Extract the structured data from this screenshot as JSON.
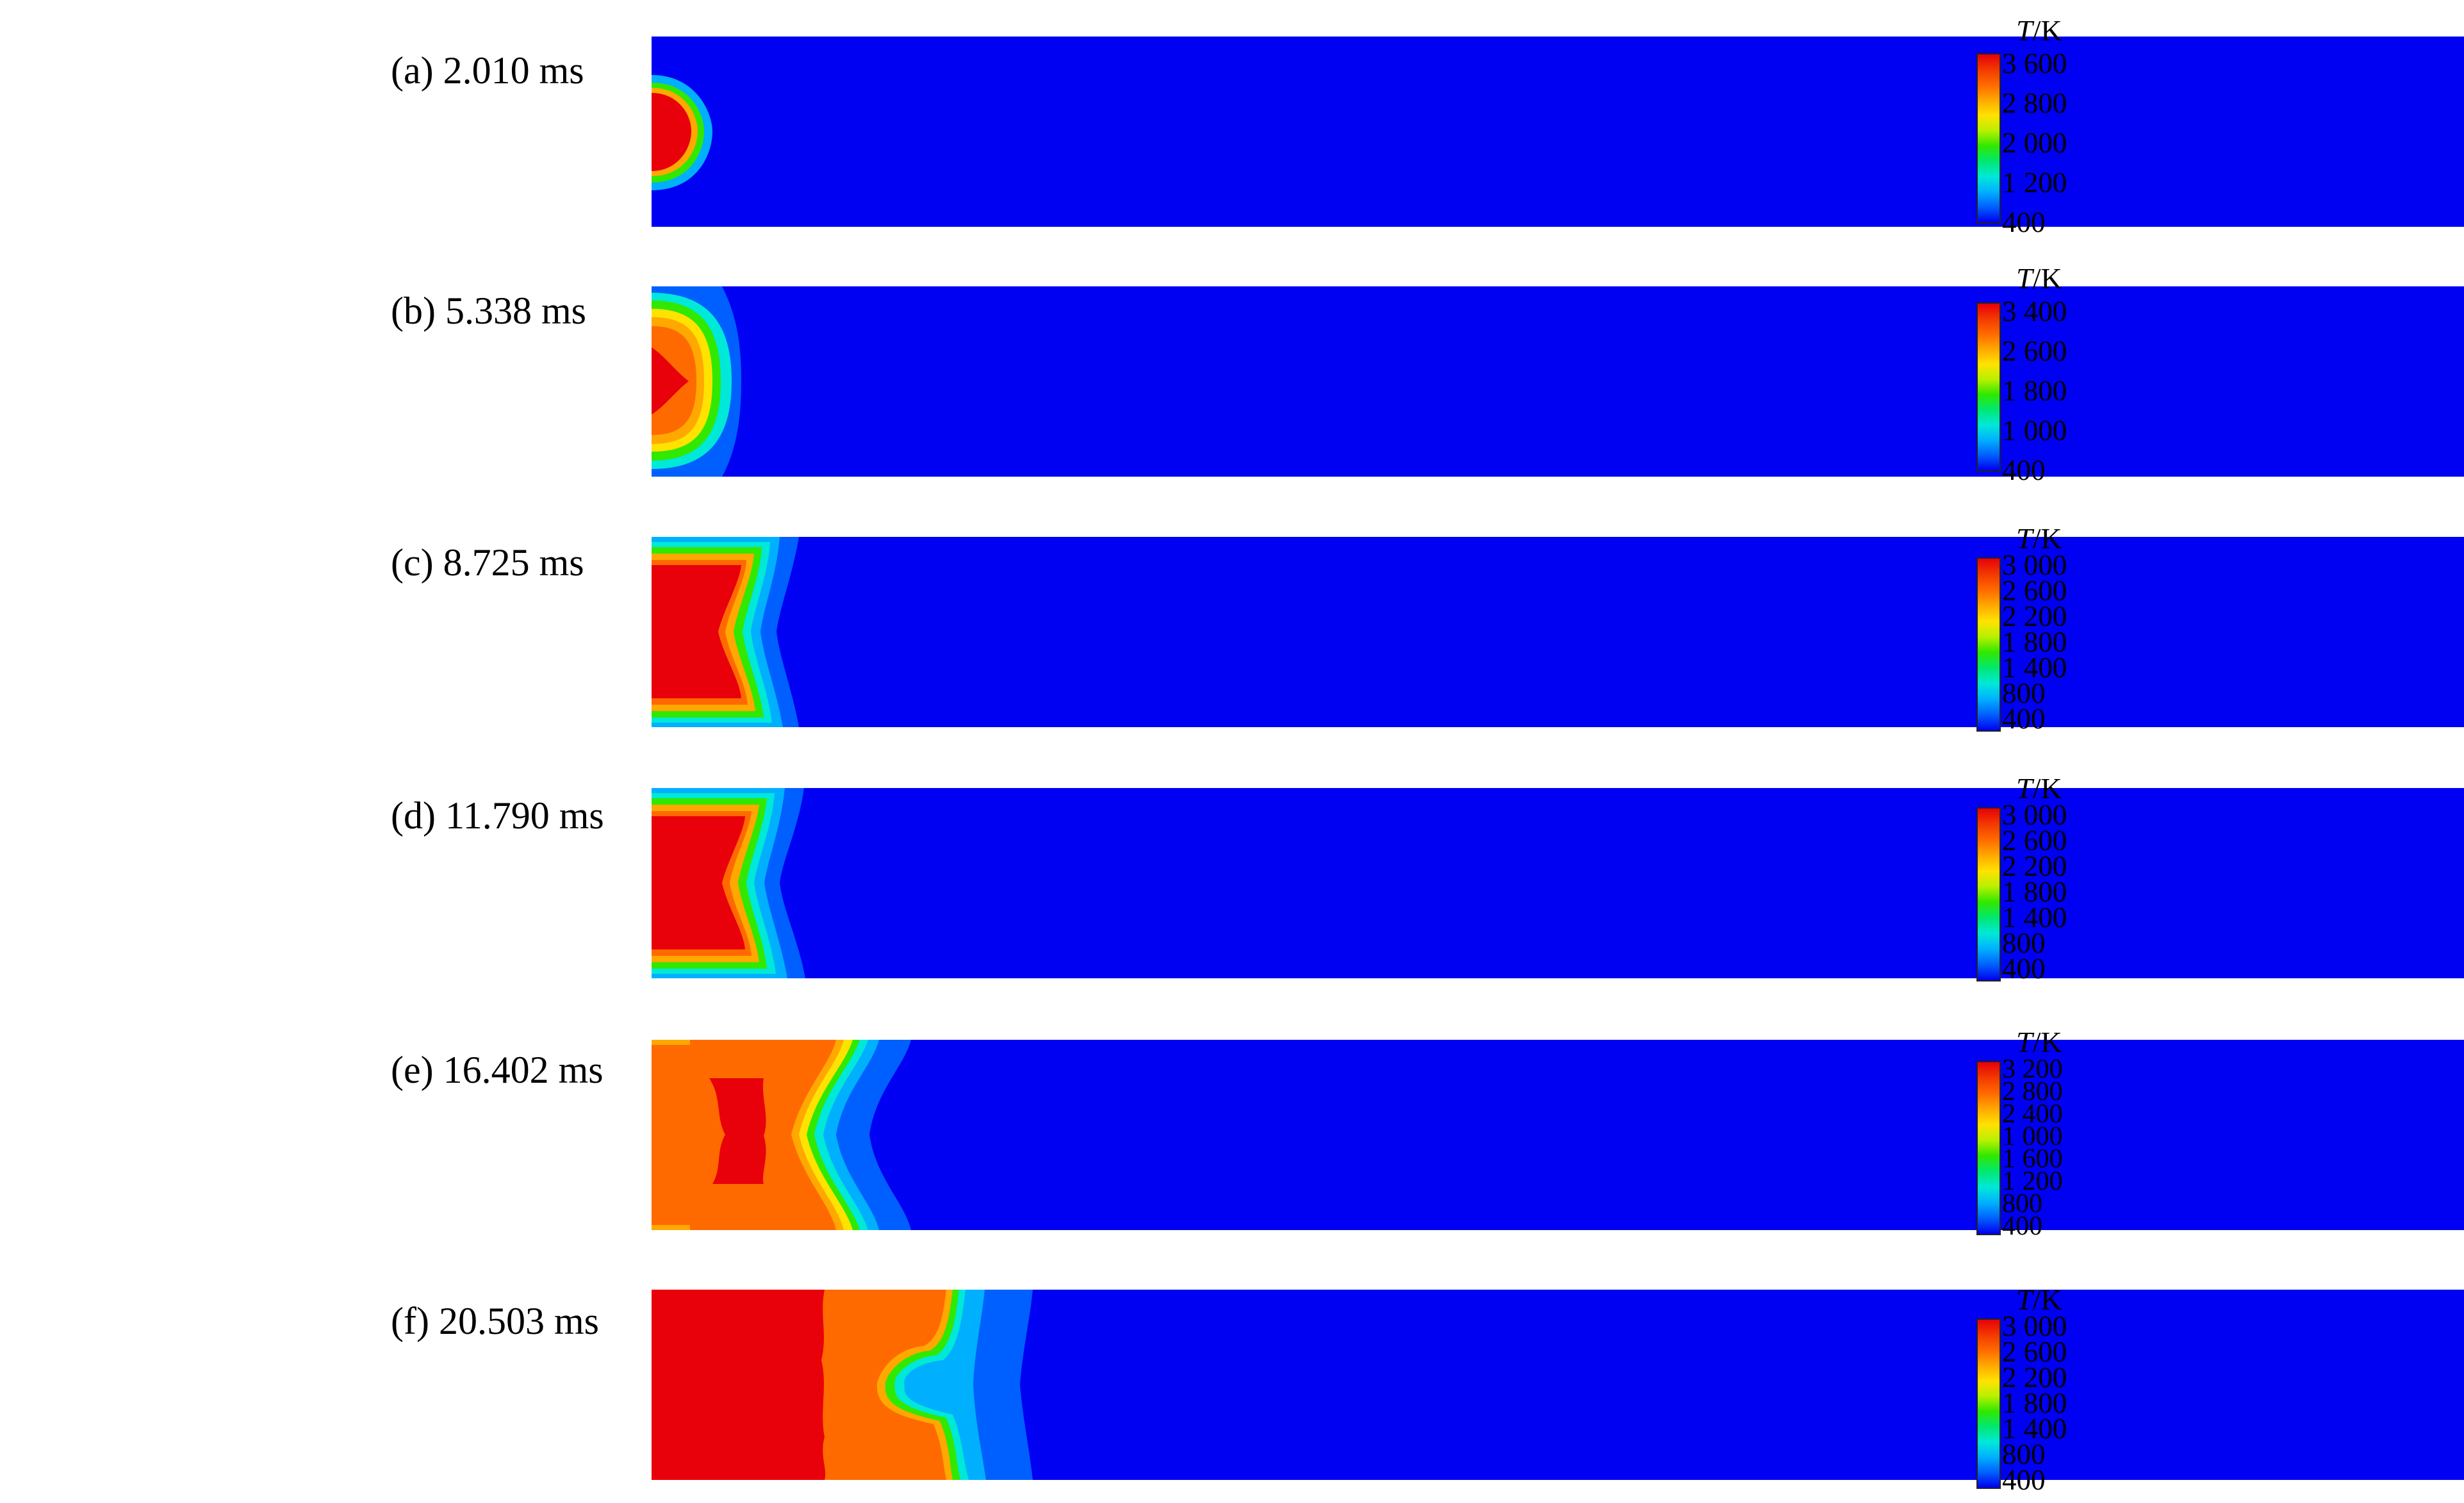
{
  "panels": [
    {
      "id": "a",
      "label": "(a) 2.010 ms",
      "ticks": [
        "3 600",
        "2 800",
        "2 000",
        "1 200",
        "400"
      ]
    },
    {
      "id": "b",
      "label": "(b) 5.338 ms",
      "ticks": [
        "3 400",
        "2 600",
        "1 800",
        "1 000",
        "400"
      ]
    },
    {
      "id": "c",
      "label": "(c) 8.725 ms",
      "ticks": [
        "3 000",
        "2 600",
        "2 200",
        "1 800",
        "1 400",
        "800",
        "400"
      ]
    },
    {
      "id": "d",
      "label": "(d) 11.790 ms",
      "ticks": [
        "3 000",
        "2 600",
        "2 200",
        "1 800",
        "1 400",
        "800",
        "400"
      ]
    },
    {
      "id": "e",
      "label": "(e) 16.402 ms",
      "ticks": [
        "3 200",
        "2 800",
        "2 400",
        "1 000",
        "1 600",
        "1 200",
        "800",
        "400"
      ]
    },
    {
      "id": "f",
      "label": "(f) 20.503 ms",
      "ticks": [
        "3 000",
        "2 600",
        "2 200",
        "1 800",
        "1 400",
        "800",
        "400"
      ]
    }
  ],
  "legend": {
    "symbol": "T",
    "unit": "/K"
  },
  "colors": {
    "background": "#0000f2",
    "scale": [
      "#e8000a",
      "#f23a00",
      "#ff6a00",
      "#ffa800",
      "#ffe200",
      "#b8f000",
      "#30e800",
      "#00e870",
      "#00e8d8",
      "#00b0ff",
      "#0060ff",
      "#0000ee"
    ]
  }
}
